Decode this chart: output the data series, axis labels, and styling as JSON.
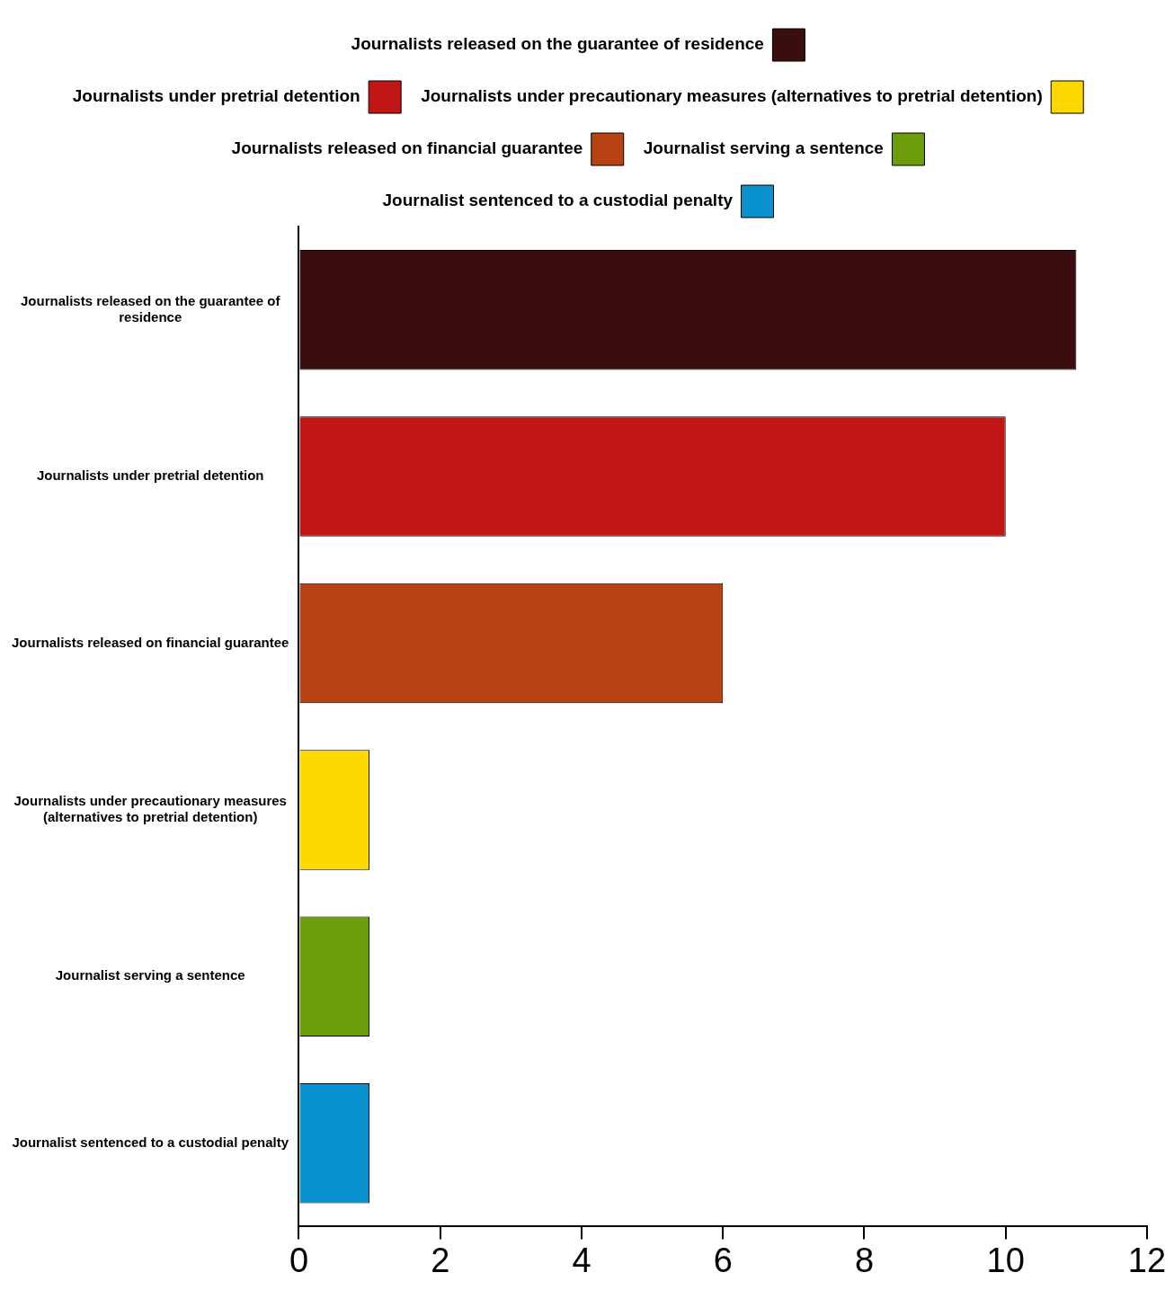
{
  "chart_data": {
    "type": "bar",
    "orientation": "horizontal",
    "categories": [
      "Journalists released on the guarantee of residence",
      "Journalists under pretrial detention",
      "Journalists released on financial guarantee",
      "Journalists under precautionary measures (alternatives to pretrial detention)",
      "Journalist serving a sentence",
      "Journalist sentenced to a custodial penalty"
    ],
    "series": [
      {
        "name": "Journalists released on the guarantee of residence",
        "color": "#3a0e0f",
        "values": [
          11,
          null,
          null,
          null,
          null,
          null
        ]
      },
      {
        "name": "Journalists under pretrial detention",
        "color": "#c01616",
        "values": [
          null,
          10,
          null,
          null,
          null,
          null
        ]
      },
      {
        "name": "Journalists released on financial guarantee",
        "color": "#b84214",
        "values": [
          null,
          null,
          6,
          null,
          null,
          null
        ]
      },
      {
        "name": "Journalists under precautionary measures (alternatives to pretrial detention)",
        "color": "#ffd800",
        "values": [
          null,
          null,
          null,
          1,
          null,
          null
        ]
      },
      {
        "name": "Journalist serving a sentence",
        "color": "#6c9e0b",
        "values": [
          null,
          null,
          null,
          null,
          1,
          null
        ]
      },
      {
        "name": "Journalist sentenced to a custodial penalty",
        "color": "#0a91cf",
        "values": [
          null,
          null,
          null,
          null,
          null,
          1
        ]
      }
    ],
    "xlim": [
      0,
      12
    ],
    "xticks": [
      0,
      2,
      4,
      6,
      8,
      10,
      12
    ],
    "grid": false,
    "legend": "top"
  }
}
